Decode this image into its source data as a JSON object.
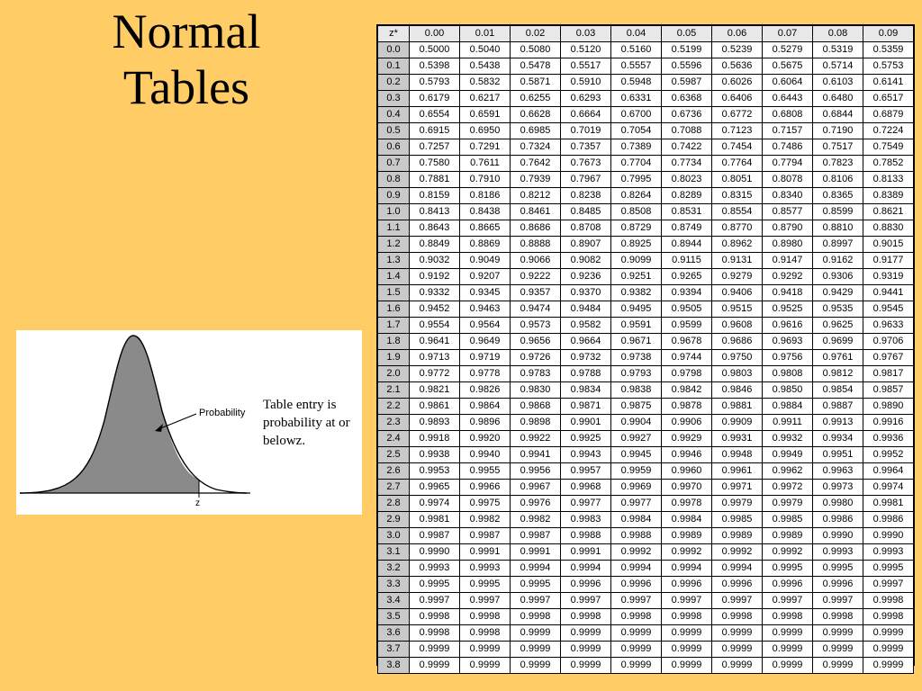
{
  "title": {
    "line1": "Normal",
    "line2": "Tables"
  },
  "figure": {
    "probability_label": "Probability",
    "z_label": "z",
    "caption_lines": [
      "Table entry is",
      "probability at or",
      "belowz."
    ]
  },
  "table": {
    "corner": "z*",
    "columns": [
      "0.00",
      "0.01",
      "0.02",
      "0.03",
      "0.04",
      "0.05",
      "0.06",
      "0.07",
      "0.08",
      "0.09"
    ],
    "rows": [
      {
        "z": "0.0",
        "values": [
          "0.5000",
          "0.5040",
          "0.5080",
          "0.5120",
          "0.5160",
          "0.5199",
          "0.5239",
          "0.5279",
          "0.5319",
          "0.5359"
        ]
      },
      {
        "z": "0.1",
        "values": [
          "0.5398",
          "0.5438",
          "0.5478",
          "0.5517",
          "0.5557",
          "0.5596",
          "0.5636",
          "0.5675",
          "0.5714",
          "0.5753"
        ]
      },
      {
        "z": "0.2",
        "values": [
          "0.5793",
          "0.5832",
          "0.5871",
          "0.5910",
          "0.5948",
          "0.5987",
          "0.6026",
          "0.6064",
          "0.6103",
          "0.6141"
        ]
      },
      {
        "z": "0.3",
        "values": [
          "0.6179",
          "0.6217",
          "0.6255",
          "0.6293",
          "0.6331",
          "0.6368",
          "0.6406",
          "0.6443",
          "0.6480",
          "0.6517"
        ]
      },
      {
        "z": "0.4",
        "values": [
          "0.6554",
          "0.6591",
          "0.6628",
          "0.6664",
          "0.6700",
          "0.6736",
          "0.6772",
          "0.6808",
          "0.6844",
          "0.6879"
        ]
      },
      {
        "z": "0.5",
        "values": [
          "0.6915",
          "0.6950",
          "0.6985",
          "0.7019",
          "0.7054",
          "0.7088",
          "0.7123",
          "0.7157",
          "0.7190",
          "0.7224"
        ]
      },
      {
        "z": "0.6",
        "values": [
          "0.7257",
          "0.7291",
          "0.7324",
          "0.7357",
          "0.7389",
          "0.7422",
          "0.7454",
          "0.7486",
          "0.7517",
          "0.7549"
        ]
      },
      {
        "z": "0.7",
        "values": [
          "0.7580",
          "0.7611",
          "0.7642",
          "0.7673",
          "0.7704",
          "0.7734",
          "0.7764",
          "0.7794",
          "0.7823",
          "0.7852"
        ]
      },
      {
        "z": "0.8",
        "values": [
          "0.7881",
          "0.7910",
          "0.7939",
          "0.7967",
          "0.7995",
          "0.8023",
          "0.8051",
          "0.8078",
          "0.8106",
          "0.8133"
        ]
      },
      {
        "z": "0.9",
        "values": [
          "0.8159",
          "0.8186",
          "0.8212",
          "0.8238",
          "0.8264",
          "0.8289",
          "0.8315",
          "0.8340",
          "0.8365",
          "0.8389"
        ]
      },
      {
        "z": "1.0",
        "values": [
          "0.8413",
          "0.8438",
          "0.8461",
          "0.8485",
          "0.8508",
          "0.8531",
          "0.8554",
          "0.8577",
          "0.8599",
          "0.8621"
        ]
      },
      {
        "z": "1.1",
        "values": [
          "0.8643",
          "0.8665",
          "0.8686",
          "0.8708",
          "0.8729",
          "0.8749",
          "0.8770",
          "0.8790",
          "0.8810",
          "0.8830"
        ]
      },
      {
        "z": "1.2",
        "values": [
          "0.8849",
          "0.8869",
          "0.8888",
          "0.8907",
          "0.8925",
          "0.8944",
          "0.8962",
          "0.8980",
          "0.8997",
          "0.9015"
        ]
      },
      {
        "z": "1.3",
        "values": [
          "0.9032",
          "0.9049",
          "0.9066",
          "0.9082",
          "0.9099",
          "0.9115",
          "0.9131",
          "0.9147",
          "0.9162",
          "0.9177"
        ]
      },
      {
        "z": "1.4",
        "values": [
          "0.9192",
          "0.9207",
          "0.9222",
          "0.9236",
          "0.9251",
          "0.9265",
          "0.9279",
          "0.9292",
          "0.9306",
          "0.9319"
        ]
      },
      {
        "z": "1.5",
        "values": [
          "0.9332",
          "0.9345",
          "0.9357",
          "0.9370",
          "0.9382",
          "0.9394",
          "0.9406",
          "0.9418",
          "0.9429",
          "0.9441"
        ]
      },
      {
        "z": "1.6",
        "values": [
          "0.9452",
          "0.9463",
          "0.9474",
          "0.9484",
          "0.9495",
          "0.9505",
          "0.9515",
          "0.9525",
          "0.9535",
          "0.9545"
        ]
      },
      {
        "z": "1.7",
        "values": [
          "0.9554",
          "0.9564",
          "0.9573",
          "0.9582",
          "0.9591",
          "0.9599",
          "0.9608",
          "0.9616",
          "0.9625",
          "0.9633"
        ]
      },
      {
        "z": "1.8",
        "values": [
          "0.9641",
          "0.9649",
          "0.9656",
          "0.9664",
          "0.9671",
          "0.9678",
          "0.9686",
          "0.9693",
          "0.9699",
          "0.9706"
        ]
      },
      {
        "z": "1.9",
        "values": [
          "0.9713",
          "0.9719",
          "0.9726",
          "0.9732",
          "0.9738",
          "0.9744",
          "0.9750",
          "0.9756",
          "0.9761",
          "0.9767"
        ]
      },
      {
        "z": "2.0",
        "values": [
          "0.9772",
          "0.9778",
          "0.9783",
          "0.9788",
          "0.9793",
          "0.9798",
          "0.9803",
          "0.9808",
          "0.9812",
          "0.9817"
        ]
      },
      {
        "z": "2.1",
        "values": [
          "0.9821",
          "0.9826",
          "0.9830",
          "0.9834",
          "0.9838",
          "0.9842",
          "0.9846",
          "0.9850",
          "0.9854",
          "0.9857"
        ]
      },
      {
        "z": "2.2",
        "values": [
          "0.9861",
          "0.9864",
          "0.9868",
          "0.9871",
          "0.9875",
          "0.9878",
          "0.9881",
          "0.9884",
          "0.9887",
          "0.9890"
        ]
      },
      {
        "z": "2.3",
        "values": [
          "0.9893",
          "0.9896",
          "0.9898",
          "0.9901",
          "0.9904",
          "0.9906",
          "0.9909",
          "0.9911",
          "0.9913",
          "0.9916"
        ]
      },
      {
        "z": "2.4",
        "values": [
          "0.9918",
          "0.9920",
          "0.9922",
          "0.9925",
          "0.9927",
          "0.9929",
          "0.9931",
          "0.9932",
          "0.9934",
          "0.9936"
        ]
      },
      {
        "z": "2.5",
        "values": [
          "0.9938",
          "0.9940",
          "0.9941",
          "0.9943",
          "0.9945",
          "0.9946",
          "0.9948",
          "0.9949",
          "0.9951",
          "0.9952"
        ]
      },
      {
        "z": "2.6",
        "values": [
          "0.9953",
          "0.9955",
          "0.9956",
          "0.9957",
          "0.9959",
          "0.9960",
          "0.9961",
          "0.9962",
          "0.9963",
          "0.9964"
        ]
      },
      {
        "z": "2.7",
        "values": [
          "0.9965",
          "0.9966",
          "0.9967",
          "0.9968",
          "0.9969",
          "0.9970",
          "0.9971",
          "0.9972",
          "0.9973",
          "0.9974"
        ]
      },
      {
        "z": "2.8",
        "values": [
          "0.9974",
          "0.9975",
          "0.9976",
          "0.9977",
          "0.9977",
          "0.9978",
          "0.9979",
          "0.9979",
          "0.9980",
          "0.9981"
        ]
      },
      {
        "z": "2.9",
        "values": [
          "0.9981",
          "0.9982",
          "0.9982",
          "0.9983",
          "0.9984",
          "0.9984",
          "0.9985",
          "0.9985",
          "0.9986",
          "0.9986"
        ]
      },
      {
        "z": "3.0",
        "values": [
          "0.9987",
          "0.9987",
          "0.9987",
          "0.9988",
          "0.9988",
          "0.9989",
          "0.9989",
          "0.9989",
          "0.9990",
          "0.9990"
        ]
      },
      {
        "z": "3.1",
        "values": [
          "0.9990",
          "0.9991",
          "0.9991",
          "0.9991",
          "0.9992",
          "0.9992",
          "0.9992",
          "0.9992",
          "0.9993",
          "0.9993"
        ]
      },
      {
        "z": "3.2",
        "values": [
          "0.9993",
          "0.9993",
          "0.9994",
          "0.9994",
          "0.9994",
          "0.9994",
          "0.9994",
          "0.9995",
          "0.9995",
          "0.9995"
        ]
      },
      {
        "z": "3.3",
        "values": [
          "0.9995",
          "0.9995",
          "0.9995",
          "0.9996",
          "0.9996",
          "0.9996",
          "0.9996",
          "0.9996",
          "0.9996",
          "0.9997"
        ]
      },
      {
        "z": "3.4",
        "values": [
          "0.9997",
          "0.9997",
          "0.9997",
          "0.9997",
          "0.9997",
          "0.9997",
          "0.9997",
          "0.9997",
          "0.9997",
          "0.9998"
        ]
      },
      {
        "z": "3.5",
        "values": [
          "0.9998",
          "0.9998",
          "0.9998",
          "0.9998",
          "0.9998",
          "0.9998",
          "0.9998",
          "0.9998",
          "0.9998",
          "0.9998"
        ]
      },
      {
        "z": "3.6",
        "values": [
          "0.9998",
          "0.9998",
          "0.9999",
          "0.9999",
          "0.9999",
          "0.9999",
          "0.9999",
          "0.9999",
          "0.9999",
          "0.9999"
        ]
      },
      {
        "z": "3.7",
        "values": [
          "0.9999",
          "0.9999",
          "0.9999",
          "0.9999",
          "0.9999",
          "0.9999",
          "0.9999",
          "0.9999",
          "0.9999",
          "0.9999"
        ]
      },
      {
        "z": "3.8",
        "values": [
          "0.9999",
          "0.9999",
          "0.9999",
          "0.9999",
          "0.9999",
          "0.9999",
          "0.9999",
          "0.9999",
          "0.9999",
          "0.9999"
        ]
      }
    ]
  }
}
